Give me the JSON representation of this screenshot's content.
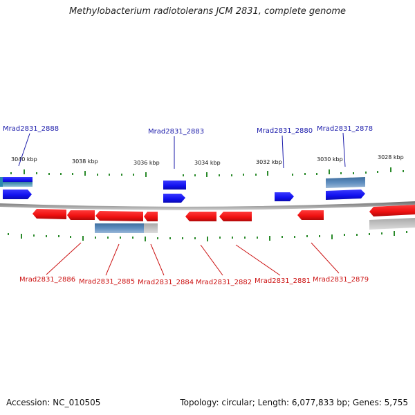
{
  "title": "Methylobacterium radiotolerans JCM 2831, complete genome",
  "footer": {
    "accession": "Accession: NC_010505",
    "summary": "Topology: circular; Length: 6,077,833 bp; Genes: 5,755"
  },
  "colors": {
    "forward_gene": "#1a1aff",
    "reverse_gene": "#ff1a1a",
    "feature_blue_grey": "#5a82b4",
    "feature_grey": "#b4b4b4",
    "backbone": "#8c8c8c",
    "tick": "#2a8a2a",
    "forward_label": "#1a1aaa",
    "reverse_label": "#cc1111"
  },
  "scale": {
    "tick_labels": [
      "3040 kbp",
      "3038 kbp",
      "3036 kbp",
      "3034 kbp",
      "3032 kbp",
      "3030 kbp",
      "3028 kbp"
    ]
  },
  "forward_labels": [
    "Mrad2831_2888",
    "Mrad2831_2883",
    "Mrad2831_2880",
    "Mrad2831_2878"
  ],
  "reverse_labels": [
    "Mrad2831_2886",
    "Mrad2831_2885",
    "Mrad2831_2884",
    "Mrad2831_2882",
    "Mrad2831_2881",
    "Mrad2831_2879"
  ]
}
